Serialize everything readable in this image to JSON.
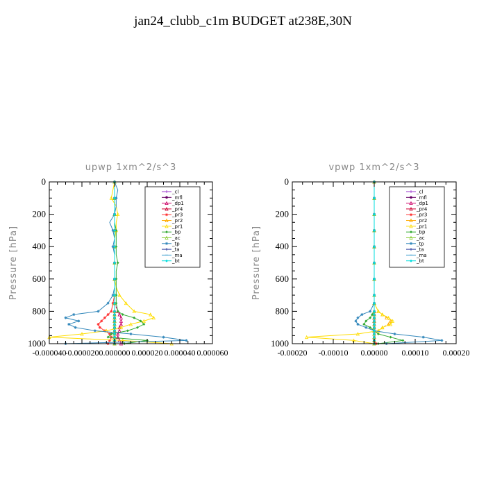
{
  "title": "jan24_clubb_c1m  BUDGET at238E,30N",
  "legend_names": [
    "_cl",
    "_mfl",
    "_dp1",
    "_pr4",
    "_pr3",
    "_pr2",
    "_pr1",
    "_bp",
    "_ac",
    "_tp",
    "_ta",
    "_ma",
    "_bt"
  ],
  "colors": {
    "_cl": "#9933cc",
    "_mfl": "#660066",
    "_dp1": "#cc0066",
    "_pr4": "#cc0033",
    "_pr3": "#ff3333",
    "_pr2": "#ffaa00",
    "_pr1": "#ffdd00",
    "_bp": "#33aa33",
    "_ac": "#88cc33",
    "_tp": "#3388bb",
    "_ta": "#223399",
    "_ma": "#3399cc",
    "_bt": "#00dddd"
  },
  "chart_data": [
    {
      "type": "line",
      "title": "upwp   1xm^2/s^3",
      "ylabel": "Pressure [hPa]",
      "ylim": [
        1000,
        0
      ],
      "xlim": [
        -4e-05,
        6e-05
      ],
      "yticks": [
        0,
        200,
        400,
        600,
        800,
        1000
      ],
      "yticklabels": [
        "0",
        "200",
        "400",
        "600",
        "800",
        "1000"
      ],
      "xticks": [
        -4e-05,
        -2e-05,
        0,
        2e-05,
        4e-05,
        6e-05
      ],
      "xticklabels": [
        "-0.000040",
        "-0.000020",
        "0.000000",
        "0.000020",
        "0.000040",
        "0.000060"
      ],
      "legend_position": "top-right",
      "y": [
        0,
        50,
        100,
        150,
        200,
        250,
        300,
        350,
        400,
        450,
        500,
        550,
        600,
        650,
        700,
        750,
        800,
        820,
        840,
        860,
        880,
        900,
        920,
        940,
        960,
        980,
        1000
      ],
      "series": [
        {
          "name": "_cl",
          "values": [
            0,
            0,
            0,
            0,
            0,
            0,
            0,
            0,
            0,
            0,
            0,
            0,
            0,
            0,
            0,
            0,
            0,
            0,
            0,
            0,
            0,
            0,
            0,
            0,
            0,
            0,
            0
          ]
        },
        {
          "name": "_mfl",
          "values": [
            0,
            0,
            0,
            0,
            0,
            0,
            0,
            0,
            0,
            0,
            0,
            0,
            0,
            0,
            0,
            0,
            0,
            0,
            0,
            0,
            0,
            0,
            0,
            0,
            0,
            0,
            0
          ]
        },
        {
          "name": "_dp1",
          "values": [
            0,
            0,
            0,
            0,
            0,
            0,
            0,
            0,
            0,
            0,
            0,
            0,
            0,
            0,
            0,
            0,
            2e-06,
            3e-06,
            4e-06,
            4e-06,
            4e-06,
            3e-06,
            3e-06,
            2e-06,
            2e-06,
            3e-06,
            4e-06
          ]
        },
        {
          "name": "_pr4",
          "values": [
            0,
            0,
            0,
            0,
            0,
            0,
            0,
            0,
            0,
            0,
            0,
            0,
            0,
            0,
            0,
            0,
            0,
            0,
            0,
            0,
            0,
            0,
            0,
            0,
            0,
            0,
            0
          ]
        },
        {
          "name": "_pr3",
          "values": [
            0,
            0,
            0,
            0,
            0,
            0,
            0,
            0,
            0,
            0,
            0,
            0,
            0,
            0,
            0,
            -1e-06,
            -2e-06,
            -4e-06,
            -6e-06,
            -8e-06,
            -1e-05,
            -9e-06,
            -6e-06,
            -3e-06,
            -2e-06,
            -3e-06,
            -4e-06
          ]
        },
        {
          "name": "_pr2",
          "values": [
            0,
            0,
            0,
            0,
            0,
            0,
            0,
            0,
            0,
            0,
            0,
            0,
            0,
            0,
            0,
            0,
            0,
            0,
            0,
            0,
            0,
            0,
            0,
            0,
            0,
            0,
            0
          ]
        },
        {
          "name": "_pr1",
          "values": [
            0,
            -1e-06,
            -2e-06,
            1e-06,
            2e-06,
            1e-06,
            1e-06,
            0,
            0,
            0,
            0,
            0,
            0,
            1e-06,
            3e-06,
            7e-06,
            1.2e-05,
            2.2e-05,
            2.4e-05,
            1.8e-05,
            1e-05,
            4e-06,
            -5e-06,
            -2e-05,
            -4e-05,
            5e-06,
            3.5e-05
          ]
        },
        {
          "name": "_bp",
          "values": [
            0,
            0,
            0,
            0,
            0,
            0,
            1e-06,
            1e-06,
            1e-06,
            1e-06,
            2e-06,
            1e-06,
            1e-06,
            1e-06,
            1e-06,
            1e-06,
            2e-06,
            5e-06,
            1.2e-05,
            1.6e-05,
            1.8e-05,
            1.4e-05,
            8e-06,
            -2e-06,
            -4e-06,
            2e-05,
            6e-06
          ]
        },
        {
          "name": "_ac",
          "values": [
            0,
            0,
            0,
            0,
            0,
            0,
            0,
            0,
            0,
            0,
            0,
            0,
            0,
            0,
            0,
            0,
            0,
            0,
            0,
            0,
            0,
            0,
            0,
            0,
            0,
            0,
            0
          ]
        },
        {
          "name": "_tp",
          "values": [
            0,
            2e-06,
            1e-06,
            1e-06,
            0,
            -3e-06,
            -1e-06,
            0,
            -1e-06,
            0,
            0,
            0,
            0,
            0,
            -1e-06,
            -4e-06,
            -1e-05,
            -2.5e-05,
            -3e-05,
            -2.2e-05,
            -2.8e-05,
            -2.4e-05,
            -1.2e-05,
            1e-05,
            3e-05,
            4.4e-05,
            -3e-05
          ]
        },
        {
          "name": "_ta",
          "values": [
            0,
            0,
            0,
            0,
            0,
            0,
            0,
            0,
            0,
            0,
            0,
            0,
            0,
            0,
            0,
            0,
            0,
            0,
            0,
            0,
            0,
            0,
            0,
            0,
            0,
            0,
            0
          ]
        },
        {
          "name": "_ma",
          "values": [
            0,
            0,
            0,
            0,
            0,
            0,
            0,
            0,
            0,
            0,
            0,
            0,
            0,
            0,
            0,
            0,
            0,
            0,
            0,
            0,
            0,
            0,
            0,
            0,
            0,
            0,
            0
          ]
        },
        {
          "name": "_bt",
          "values": [
            0,
            0,
            0,
            0,
            0,
            0,
            0,
            0,
            0,
            0,
            0,
            0,
            0,
            0,
            0,
            0,
            0,
            0,
            0,
            0,
            0,
            0,
            0,
            0,
            0,
            0,
            0
          ]
        }
      ]
    },
    {
      "type": "line",
      "title": "vpwp   1xm^2/s^3",
      "ylabel": "Pressure [hPa]",
      "ylim": [
        1000,
        0
      ],
      "xlim": [
        -0.0002,
        0.0002
      ],
      "yticks": [
        0,
        200,
        400,
        600,
        800,
        1000
      ],
      "yticklabels": [
        "0",
        "200",
        "400",
        "600",
        "800",
        "1000"
      ],
      "xticks": [
        -0.0002,
        -0.0001,
        0,
        0.0001,
        0.0002
      ],
      "xticklabels": [
        "-0.00020",
        "-0.00010",
        "0.00000",
        "0.00010",
        "0.00020"
      ],
      "legend_position": "top-right",
      "y": [
        0,
        50,
        100,
        150,
        200,
        250,
        300,
        350,
        400,
        450,
        500,
        550,
        600,
        650,
        700,
        750,
        800,
        820,
        840,
        860,
        880,
        900,
        920,
        940,
        960,
        980,
        1000
      ],
      "series": [
        {
          "name": "_cl",
          "values": [
            0,
            0,
            0,
            0,
            0,
            0,
            0,
            0,
            0,
            0,
            0,
            0,
            0,
            0,
            0,
            0,
            0,
            0,
            0,
            0,
            0,
            0,
            0,
            0,
            0,
            0,
            0
          ]
        },
        {
          "name": "_mfl",
          "values": [
            0,
            0,
            0,
            0,
            0,
            0,
            0,
            0,
            0,
            0,
            0,
            0,
            0,
            0,
            0,
            0,
            0,
            0,
            0,
            0,
            0,
            0,
            0,
            0,
            0,
            0,
            0
          ]
        },
        {
          "name": "_dp1",
          "values": [
            0,
            0,
            0,
            0,
            0,
            0,
            0,
            0,
            0,
            0,
            0,
            0,
            0,
            0,
            0,
            0,
            0,
            0,
            0,
            0,
            0,
            0,
            0,
            0,
            0,
            0,
            0
          ]
        },
        {
          "name": "_pr4",
          "values": [
            0,
            0,
            0,
            0,
            0,
            0,
            0,
            0,
            0,
            0,
            0,
            0,
            0,
            0,
            0,
            0,
            0,
            0,
            0,
            0,
            0,
            0,
            0,
            0,
            0,
            0,
            0
          ]
        },
        {
          "name": "_pr3",
          "values": [
            0,
            0,
            0,
            0,
            0,
            0,
            0,
            0,
            0,
            0,
            0,
            0,
            0,
            0,
            0,
            0,
            0,
            0,
            0,
            0,
            0,
            0,
            0,
            0,
            0,
            0,
            5e-06
          ]
        },
        {
          "name": "_pr2",
          "values": [
            0,
            0,
            0,
            0,
            0,
            0,
            0,
            0,
            0,
            0,
            0,
            0,
            0,
            0,
            0,
            0,
            1e-05,
            2e-05,
            3e-05,
            4e-05,
            3.5e-05,
            2e-05,
            1e-05,
            0,
            0,
            0,
            0
          ]
        },
        {
          "name": "_pr1",
          "values": [
            0,
            0,
            0,
            0,
            0,
            0,
            0,
            0,
            0,
            0,
            0,
            0,
            0,
            0,
            0,
            0,
            1e-05,
            2e-05,
            3.5e-05,
            4.5e-05,
            4e-05,
            2e-05,
            1e-05,
            -4e-05,
            -0.000165,
            -5e-05,
            0
          ]
        },
        {
          "name": "_bp",
          "values": [
            0,
            0,
            0,
            0,
            0,
            0,
            0,
            0,
            0,
            0,
            0,
            0,
            0,
            0,
            0,
            0,
            0,
            -5e-06,
            -1e-05,
            -2e-05,
            -2.5e-05,
            -1e-05,
            0,
            1e-05,
            4e-05,
            7e-05,
            1e-05
          ]
        },
        {
          "name": "_ac",
          "values": [
            0,
            0,
            0,
            0,
            0,
            0,
            0,
            0,
            0,
            0,
            0,
            0,
            0,
            0,
            0,
            0,
            0,
            0,
            0,
            0,
            0,
            0,
            0,
            0,
            0,
            0,
            0
          ]
        },
        {
          "name": "_tp",
          "values": [
            0,
            0,
            0,
            0,
            0,
            0,
            0,
            0,
            0,
            0,
            0,
            0,
            0,
            0,
            0,
            0,
            -1e-05,
            -3e-05,
            -4e-05,
            -4.5e-05,
            -4e-05,
            -2e-05,
            0,
            5e-05,
            0.00012,
            0.000165,
            3e-05
          ]
        },
        {
          "name": "_ta",
          "values": [
            0,
            0,
            0,
            0,
            0,
            0,
            0,
            0,
            0,
            0,
            0,
            0,
            0,
            0,
            0,
            0,
            0,
            0,
            0,
            0,
            0,
            0,
            0,
            0,
            0,
            0,
            0
          ]
        },
        {
          "name": "_ma",
          "values": [
            0,
            0,
            0,
            0,
            0,
            0,
            0,
            0,
            0,
            0,
            0,
            0,
            0,
            0,
            0,
            0,
            0,
            0,
            0,
            0,
            0,
            0,
            0,
            0,
            0,
            0,
            0
          ]
        },
        {
          "name": "_bt",
          "values": [
            0,
            0,
            0,
            0,
            0,
            0,
            0,
            0,
            0,
            0,
            0,
            0,
            0,
            0,
            0,
            0,
            0,
            0,
            0,
            0,
            0,
            0,
            0,
            0,
            0,
            0,
            0
          ]
        }
      ]
    }
  ]
}
